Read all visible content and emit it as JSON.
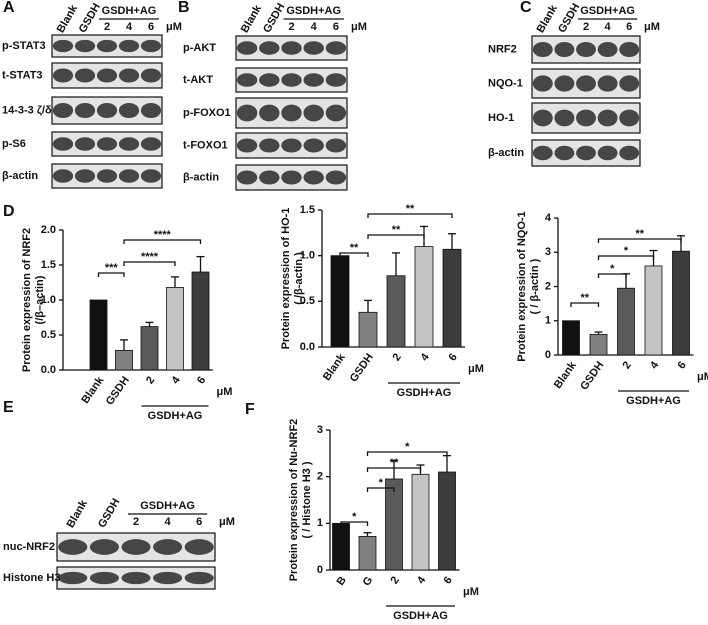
{
  "blots": [
    {
      "letter": "A",
      "columns": [
        "Blank",
        "GSDH"
      ],
      "group_label": "GSDH+AG",
      "doses": [
        "2",
        "4",
        "6"
      ],
      "unit": "μM",
      "rows": [
        "p-STAT3",
        "t-STAT3",
        "14-3-3 ζ/δ",
        "p-S6",
        "β-actin"
      ]
    },
    {
      "letter": "B",
      "columns": [
        "Blank",
        "GSDH"
      ],
      "group_label": "GSDH+AG",
      "doses": [
        "2",
        "4",
        "6"
      ],
      "unit": "μM",
      "rows": [
        "p-AKT",
        "t-AKT",
        "p-FOXO1",
        "t-FOXO1",
        "β-actin"
      ]
    },
    {
      "letter": "C",
      "columns": [
        "Blank",
        "GSDH"
      ],
      "group_label": "GSDH+AG",
      "doses": [
        "2",
        "4",
        "6"
      ],
      "unit": "μM",
      "rows": [
        "NRF2",
        "NQO-1",
        "HO-1",
        "β-actin"
      ]
    },
    {
      "letter": "E",
      "columns": [
        "Blank",
        "GSDH"
      ],
      "group_label": "GSDH+AG",
      "doses": [
        "2",
        "4",
        "6"
      ],
      "unit": "μM",
      "rows": [
        "nuc-NRF2",
        "Histone H3"
      ]
    }
  ],
  "chart_data": [
    {
      "type": "bar",
      "letter": "D",
      "ylabel": "Protein expression of NRF2",
      "ylabel_sub": "(/β–actin)",
      "categories": [
        "Blank",
        "GSDH",
        "2",
        "4",
        "6"
      ],
      "group_label": "GSDH+AG",
      "unit": "μM",
      "values": [
        1.0,
        0.28,
        0.62,
        1.18,
        1.4
      ],
      "errors": [
        null,
        0.15,
        0.06,
        0.15,
        0.22
      ],
      "colors": [
        "#111111",
        "#808080",
        "#5a5a5a",
        "#c4c4c4",
        "#3c3c3c"
      ],
      "ylim": [
        0,
        2
      ],
      "yticks": [
        {
          "value": 0,
          "label": "0.0"
        },
        0.5,
        {
          "value": 1,
          "label": "1.0"
        },
        1.5,
        {
          "value": 2,
          "label": "2.0"
        }
      ],
      "annotations": [
        "***",
        "****",
        "****"
      ]
    },
    {
      "type": "bar",
      "ylabel": "Protein expression of HO-1",
      "ylabel_sub": "( /β-actin )",
      "categories": [
        "Blank",
        "GSDH",
        "2",
        "4",
        "6"
      ],
      "group_label": "GSDH+AG",
      "unit": "μM",
      "values": [
        1.0,
        0.38,
        0.78,
        1.1,
        1.07
      ],
      "errors": [
        null,
        0.13,
        0.25,
        0.22,
        0.17
      ],
      "colors": [
        "#111111",
        "#808080",
        "#5a5a5a",
        "#c4c4c4",
        "#3c3c3c"
      ],
      "ylim": [
        0,
        1.5
      ],
      "yticks": [
        {
          "value": 0,
          "label": "0.0"
        },
        0.5,
        {
          "value": 1,
          "label": "1.0"
        },
        1.5
      ],
      "annotations": [
        "**",
        "**",
        "**"
      ]
    },
    {
      "type": "bar",
      "ylabel": "Protein expression of NQO-1",
      "ylabel_sub": "( / β-actin )",
      "categories": [
        "Blank",
        "GSDH",
        "2",
        "4",
        "6"
      ],
      "group_label": "GSDH+AG",
      "unit": "μM",
      "values": [
        1.0,
        0.6,
        1.95,
        2.6,
        3.03
      ],
      "errors": [
        null,
        0.07,
        0.42,
        0.45,
        0.45
      ],
      "colors": [
        "#111111",
        "#808080",
        "#5a5a5a",
        "#c4c4c4",
        "#3c3c3c"
      ],
      "ylim": [
        0,
        4
      ],
      "yticks": [
        0,
        1,
        2,
        3,
        4
      ],
      "annotations": [
        "**",
        "*",
        "*",
        "**"
      ]
    },
    {
      "type": "bar",
      "letter": "F",
      "ylabel": "Protein expression of Nu-NRF2",
      "ylabel_sub": "( / Histone H3 )",
      "categories": [
        "B",
        "G",
        "2",
        "4",
        "6"
      ],
      "group_label": "GSDH+AG",
      "unit": "μM",
      "values": [
        1.0,
        0.72,
        1.95,
        2.05,
        2.1
      ],
      "errors": [
        null,
        0.08,
        0.4,
        0.2,
        0.35
      ],
      "colors": [
        "#111111",
        "#808080",
        "#5a5a5a",
        "#c4c4c4",
        "#3c3c3c"
      ],
      "ylim": [
        0,
        3
      ],
      "yticks": [
        0,
        1,
        2,
        3
      ],
      "annotations": [
        "*",
        "*",
        "**",
        "*"
      ]
    }
  ]
}
